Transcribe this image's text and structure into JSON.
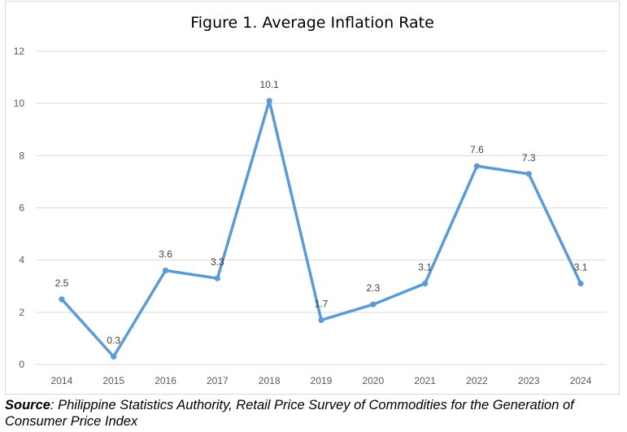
{
  "chart_data": {
    "type": "line",
    "title": "Figure 1. Average Inflation Rate",
    "xlabel": "",
    "ylabel": "",
    "categories": [
      "2014",
      "2015",
      "2016",
      "2017",
      "2018",
      "2019",
      "2020",
      "2021",
      "2022",
      "2023",
      "2024"
    ],
    "series": [
      {
        "values": [
          2.5,
          0.3,
          3.6,
          3.3,
          10.1,
          1.7,
          2.3,
          3.1,
          7.6,
          7.3,
          3.1
        ],
        "data_labels": [
          "2.5",
          "0.3",
          "3.6",
          "3.3",
          "10.1",
          "1.7",
          "2.3",
          "3.1",
          "7.6",
          "7.3",
          "3.1"
        ],
        "color": "#5b9bd5"
      }
    ],
    "ylim": [
      0,
      12
    ],
    "yticks": [
      "0",
      "2",
      "4",
      "6",
      "8",
      "10",
      "12"
    ],
    "grid": true,
    "legend": "none"
  },
  "source": {
    "label": "Source",
    "text": ": Philippine Statistics Authority, Retail Price Survey of Commodities for the Generation of Consumer Price Index"
  }
}
